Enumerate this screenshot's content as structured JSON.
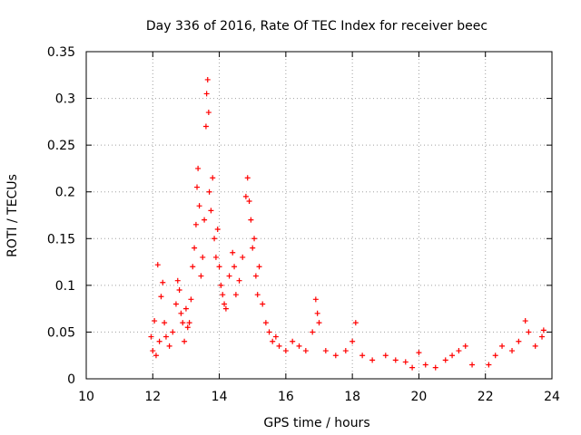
{
  "chart_data": {
    "type": "scatter",
    "title": "Day 336 of 2016, Rate Of TEC Index for receiver beec",
    "xlabel": "GPS time / hours",
    "ylabel": "ROTI / TECUs",
    "xlim": [
      10,
      24
    ],
    "ylim": [
      0,
      0.35
    ],
    "x_ticks": [
      10,
      12,
      14,
      16,
      18,
      20,
      22,
      24
    ],
    "y_ticks": [
      0,
      0.05,
      0.1,
      0.15,
      0.2,
      0.25,
      0.3,
      0.35
    ],
    "x_tick_labels": [
      "10",
      "12",
      "14",
      "16",
      "18",
      "20",
      "22",
      "24"
    ],
    "y_tick_labels": [
      "0",
      "0.05",
      "0.1",
      "0.15",
      "0.2",
      "0.25",
      "0.3",
      "0.35"
    ],
    "grid": true,
    "grid_style": "dotted",
    "legend": "none",
    "marker": "+",
    "marker_color": "#ff0000",
    "series": [
      {
        "points": [
          [
            11.95,
            0.045
          ],
          [
            12.0,
            0.03
          ],
          [
            12.05,
            0.062
          ],
          [
            12.1,
            0.025
          ],
          [
            12.15,
            0.122
          ],
          [
            12.2,
            0.04
          ],
          [
            12.25,
            0.088
          ],
          [
            12.3,
            0.103
          ],
          [
            12.35,
            0.06
          ],
          [
            12.4,
            0.045
          ],
          [
            12.5,
            0.035
          ],
          [
            12.6,
            0.05
          ],
          [
            12.7,
            0.08
          ],
          [
            12.75,
            0.105
          ],
          [
            12.8,
            0.095
          ],
          [
            12.85,
            0.07
          ],
          [
            12.9,
            0.06
          ],
          [
            12.95,
            0.04
          ],
          [
            13.0,
            0.075
          ],
          [
            13.05,
            0.055
          ],
          [
            13.1,
            0.06
          ],
          [
            13.15,
            0.085
          ],
          [
            13.2,
            0.12
          ],
          [
            13.25,
            0.14
          ],
          [
            13.3,
            0.165
          ],
          [
            13.33,
            0.205
          ],
          [
            13.36,
            0.225
          ],
          [
            13.4,
            0.185
          ],
          [
            13.45,
            0.11
          ],
          [
            13.5,
            0.13
          ],
          [
            13.55,
            0.17
          ],
          [
            13.6,
            0.27
          ],
          [
            13.62,
            0.305
          ],
          [
            13.65,
            0.32
          ],
          [
            13.68,
            0.285
          ],
          [
            13.7,
            0.2
          ],
          [
            13.75,
            0.18
          ],
          [
            13.8,
            0.215
          ],
          [
            13.85,
            0.15
          ],
          [
            13.9,
            0.13
          ],
          [
            13.95,
            0.16
          ],
          [
            14.0,
            0.12
          ],
          [
            14.05,
            0.1
          ],
          [
            14.1,
            0.09
          ],
          [
            14.15,
            0.08
          ],
          [
            14.2,
            0.075
          ],
          [
            14.3,
            0.11
          ],
          [
            14.4,
            0.135
          ],
          [
            14.45,
            0.12
          ],
          [
            14.5,
            0.09
          ],
          [
            14.6,
            0.105
          ],
          [
            14.7,
            0.13
          ],
          [
            14.8,
            0.195
          ],
          [
            14.85,
            0.215
          ],
          [
            14.9,
            0.19
          ],
          [
            14.95,
            0.17
          ],
          [
            15.0,
            0.14
          ],
          [
            15.05,
            0.15
          ],
          [
            15.1,
            0.11
          ],
          [
            15.15,
            0.09
          ],
          [
            15.2,
            0.12
          ],
          [
            15.3,
            0.08
          ],
          [
            15.4,
            0.06
          ],
          [
            15.5,
            0.05
          ],
          [
            15.6,
            0.04
          ],
          [
            15.7,
            0.045
          ],
          [
            15.8,
            0.035
          ],
          [
            16.0,
            0.03
          ],
          [
            16.2,
            0.04
          ],
          [
            16.4,
            0.035
          ],
          [
            16.6,
            0.03
          ],
          [
            16.8,
            0.05
          ],
          [
            16.9,
            0.085
          ],
          [
            16.95,
            0.07
          ],
          [
            17.0,
            0.06
          ],
          [
            17.2,
            0.03
          ],
          [
            17.5,
            0.025
          ],
          [
            17.8,
            0.03
          ],
          [
            18.0,
            0.04
          ],
          [
            18.1,
            0.06
          ],
          [
            18.3,
            0.025
          ],
          [
            18.6,
            0.02
          ],
          [
            19.0,
            0.025
          ],
          [
            19.3,
            0.02
          ],
          [
            19.6,
            0.018
          ],
          [
            19.8,
            0.012
          ],
          [
            20.0,
            0.028
          ],
          [
            20.2,
            0.015
          ],
          [
            20.5,
            0.012
          ],
          [
            20.8,
            0.02
          ],
          [
            21.0,
            0.025
          ],
          [
            21.2,
            0.03
          ],
          [
            21.4,
            0.035
          ],
          [
            21.6,
            0.015
          ],
          [
            22.1,
            0.015
          ],
          [
            22.3,
            0.025
          ],
          [
            22.5,
            0.035
          ],
          [
            22.8,
            0.03
          ],
          [
            23.0,
            0.04
          ],
          [
            23.2,
            0.062
          ],
          [
            23.3,
            0.05
          ],
          [
            23.5,
            0.035
          ],
          [
            23.7,
            0.045
          ],
          [
            23.75,
            0.052
          ]
        ]
      }
    ]
  }
}
